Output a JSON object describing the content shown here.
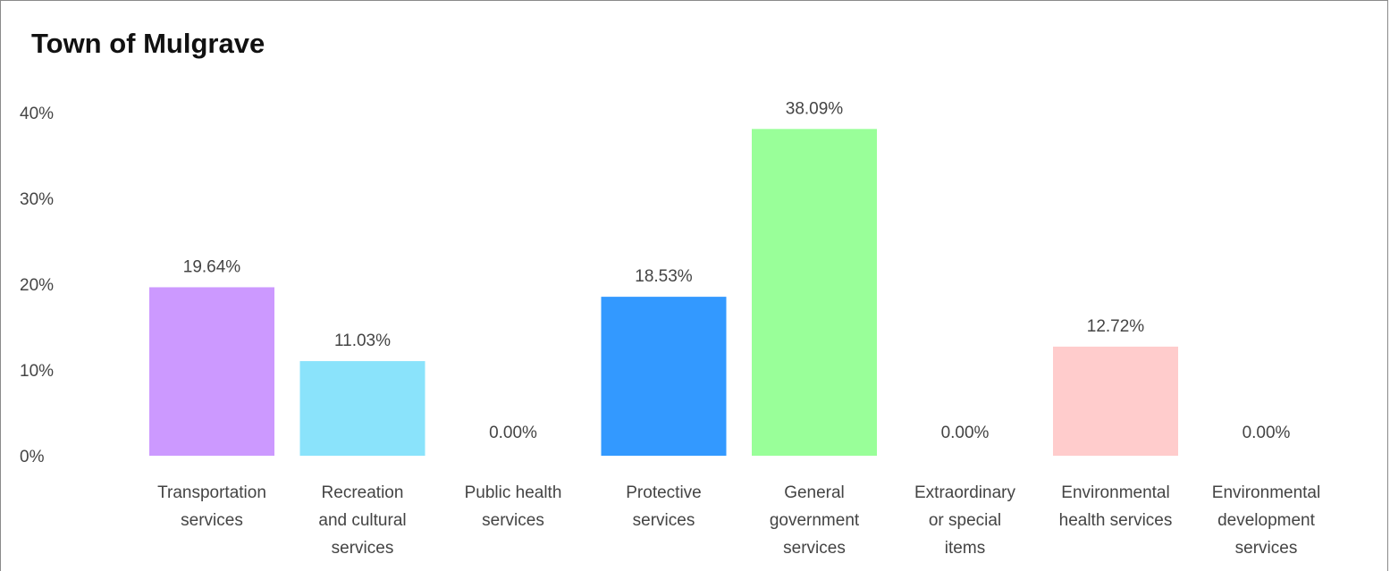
{
  "chart_data": {
    "type": "bar",
    "title": "Town of Mulgrave",
    "categories": [
      [
        "Transportation",
        "services"
      ],
      [
        "Recreation",
        "and cultural",
        "services"
      ],
      [
        "Public health",
        "services"
      ],
      [
        "Protective",
        "services"
      ],
      [
        "General",
        "government",
        "services"
      ],
      [
        "Extraordinary",
        "or special",
        "items"
      ],
      [
        "Environmental",
        "health services"
      ],
      [
        "Environmental",
        "development",
        "services"
      ]
    ],
    "values": [
      19.64,
      11.03,
      0.0,
      18.53,
      38.09,
      0.0,
      12.72,
      0.0
    ],
    "value_labels": [
      "19.64%",
      "11.03%",
      "0.00%",
      "18.53%",
      "38.09%",
      "0.00%",
      "12.72%",
      "0.00%"
    ],
    "colors": [
      "#cc99ff",
      "#8ae3fb",
      "#cccccc",
      "#3399ff",
      "#99ff99",
      "#cccccc",
      "#ffcccc",
      "#cccccc"
    ],
    "yticks": [
      "0%",
      "10%",
      "20%",
      "30%",
      "40%"
    ],
    "ylim": [
      0,
      40
    ],
    "grid": false,
    "legend": "none"
  }
}
